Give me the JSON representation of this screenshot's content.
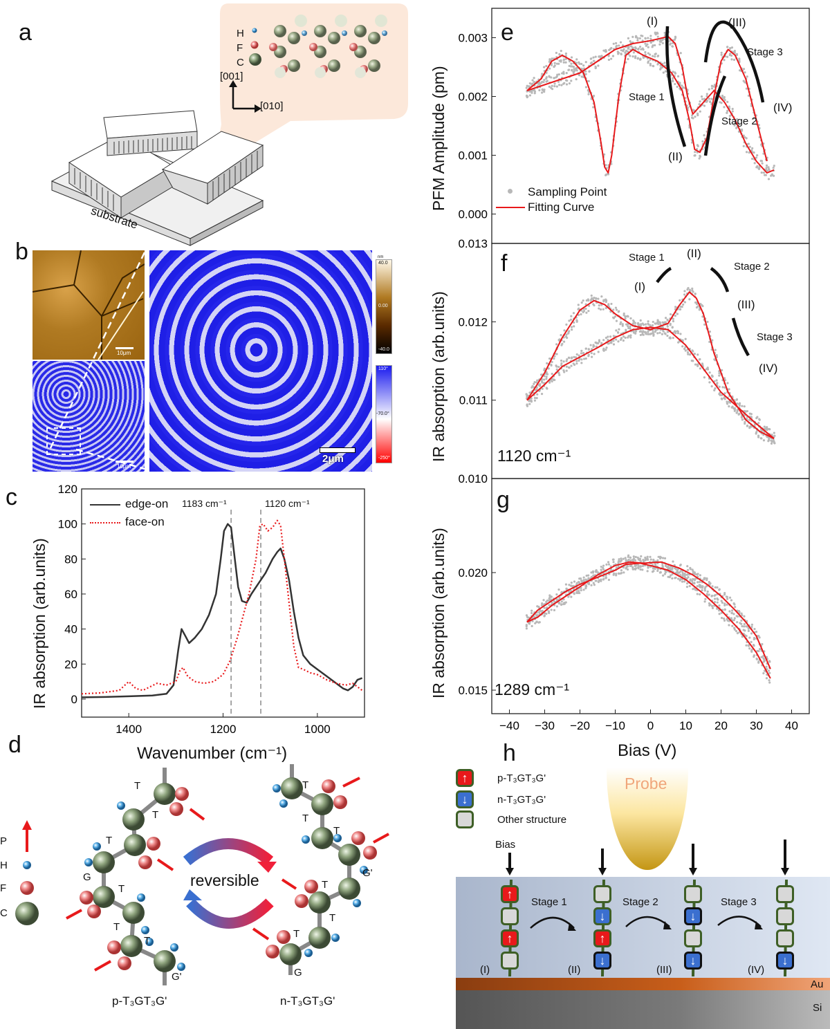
{
  "panel_letters": {
    "a": "a",
    "b": "b",
    "c": "c",
    "d": "d",
    "e": "e",
    "f": "f",
    "g": "g",
    "h": "h"
  },
  "panel_a": {
    "atoms": [
      "H",
      "F",
      "C"
    ],
    "axis_up": "[001]",
    "axis_right": "[010]",
    "substrate": "substrate"
  },
  "panel_b": {
    "scale_small_1": "10μm",
    "scale_small_2": "10μm",
    "scale_big": "2μm",
    "height_bar": {
      "unit": "nm",
      "max": "40.0",
      "mid": "0.00",
      "min": "-40.0"
    },
    "phase_bar": {
      "max": "110°",
      "mid": "-70.0°",
      "min": "-250°"
    }
  },
  "panel_d": {
    "legend": [
      "P",
      "H",
      "F",
      "C"
    ],
    "reversible": "reversible",
    "left_caption": "p-T₃GT₃G'",
    "right_caption": "n-T₃GT₃G'",
    "left_labels": [
      "T",
      "T",
      "T",
      "G",
      "T",
      "T",
      "T",
      "G'"
    ],
    "right_labels": [
      "T",
      "T",
      "T",
      "G'",
      "T",
      "T",
      "T",
      "G"
    ]
  },
  "panel_h": {
    "legend": [
      "p-T₃GT₃G'",
      "n-T₃GT₃G'",
      "Other structure"
    ],
    "probe": "Probe",
    "bias": "Bias",
    "stages": [
      "Stage 1",
      "Stage 2",
      "Stage 3"
    ],
    "states": [
      "(I)",
      "(II)",
      "(III)",
      "(IV)"
    ],
    "layers": [
      "Au",
      "Si"
    ]
  },
  "colors": {
    "red": "#e8191b",
    "gray_points": "#b8b8b8",
    "edge_on": "#333333",
    "blue_map": "#1a1aee"
  },
  "chart_data": [
    {
      "id": "c",
      "type": "line",
      "xlabel": "Wavenumber (cm⁻¹)",
      "ylabel": "IR absorption (arb.units)",
      "xlim": [
        1500,
        900
      ],
      "ylim": [
        -10.3,
        120
      ],
      "xticks": [
        1400,
        1200,
        1000
      ],
      "yticks": [
        0,
        20,
        40,
        60,
        80,
        100,
        120
      ],
      "vlines": [
        {
          "x": 1183,
          "label": "1183 cm⁻¹"
        },
        {
          "x": 1120,
          "label": "1120 cm⁻¹"
        }
      ],
      "legend": "top-left",
      "series": [
        {
          "name": "edge-on",
          "style": "solid",
          "x": [
            1500,
            1450,
            1400,
            1350,
            1320,
            1305,
            1295,
            1288,
            1280,
            1272,
            1260,
            1245,
            1230,
            1215,
            1205,
            1198,
            1190,
            1183,
            1175,
            1168,
            1160,
            1150,
            1140,
            1125,
            1110,
            1095,
            1085,
            1078,
            1070,
            1060,
            1050,
            1040,
            1030,
            1015,
            1000,
            980,
            960,
            945,
            935,
            925,
            915,
            905
          ],
          "y": [
            1,
            1.2,
            1.6,
            2,
            3,
            8,
            28,
            40,
            36,
            32,
            35,
            40,
            48,
            60,
            80,
            96,
            100,
            98,
            80,
            64,
            56,
            55,
            60,
            66,
            72,
            80,
            84,
            86,
            80,
            68,
            50,
            35,
            25,
            20,
            17,
            13,
            9,
            6,
            5,
            7,
            11,
            12
          ]
        },
        {
          "name": "face-on",
          "style": "dotted",
          "x": [
            1500,
            1460,
            1420,
            1400,
            1385,
            1370,
            1340,
            1320,
            1300,
            1292,
            1285,
            1275,
            1260,
            1240,
            1220,
            1200,
            1185,
            1170,
            1160,
            1145,
            1130,
            1122,
            1115,
            1105,
            1095,
            1085,
            1078,
            1070,
            1060,
            1050,
            1040,
            1030,
            1015,
            1000,
            980,
            960,
            940,
            925,
            910,
            905
          ],
          "y": [
            3,
            3.5,
            5,
            10,
            6,
            5,
            9,
            8,
            10,
            16,
            18,
            13,
            10,
            9,
            10,
            14,
            22,
            35,
            45,
            60,
            80,
            99,
            100,
            96,
            98,
            102,
            99,
            80,
            55,
            30,
            18,
            17,
            15,
            14,
            11,
            9,
            8,
            9,
            6,
            5
          ]
        }
      ]
    },
    {
      "id": "e",
      "type": "scatter+line",
      "ylabel": "PFM Amplitude (pm)",
      "xlim": [
        -45,
        45
      ],
      "ylim": [
        -0.0005,
        0.0035
      ],
      "yticks": [
        "0.000",
        "0.001",
        "0.002",
        "0.003"
      ],
      "legend": {
        "position": "bottom-left",
        "entries": [
          "Sampling Point",
          "Fitting Curve"
        ]
      },
      "annotations": [
        "(I)",
        "(II)",
        "(III)",
        "(IV)",
        "Stage 1",
        "Stage 2",
        "Stage 3"
      ],
      "series": [
        {
          "name": "Fitting Curve (sweep A)",
          "x": [
            -35,
            -31,
            -28,
            -25,
            -22,
            -19,
            -16,
            -14,
            -13,
            -12,
            -11,
            -9,
            -7,
            -5,
            -2,
            2,
            6,
            9,
            11,
            12.5,
            14,
            16,
            18,
            20,
            22,
            24,
            27,
            30,
            33
          ],
          "y": [
            0.0021,
            0.0023,
            0.0026,
            0.0027,
            0.0026,
            0.0024,
            0.0019,
            0.0012,
            0.0008,
            0.0007,
            0.001,
            0.002,
            0.0027,
            0.0028,
            0.0027,
            0.0026,
            0.0024,
            0.0021,
            0.0016,
            0.0011,
            0.00105,
            0.0013,
            0.002,
            0.0026,
            0.0028,
            0.0027,
            0.0023,
            0.0016,
            0.0009
          ]
        },
        {
          "name": "Fitting Curve (sweep B)",
          "x": [
            -35,
            -30,
            -25,
            -20,
            -15,
            -10,
            -5,
            0,
            5,
            7,
            9,
            10.5,
            12,
            15,
            18,
            21,
            24,
            27,
            30,
            33,
            35
          ],
          "y": [
            0.0021,
            0.0022,
            0.0023,
            0.0024,
            0.0026,
            0.0028,
            0.0029,
            0.00295,
            0.00302,
            0.0029,
            0.0025,
            0.002,
            0.0017,
            0.0019,
            0.0021,
            0.0019,
            0.0016,
            0.0012,
            0.0009,
            0.0007,
            0.00075
          ]
        }
      ]
    },
    {
      "id": "f",
      "type": "scatter+line",
      "ylabel": "IR absorption (arb.units)",
      "xlim": [
        -45,
        45
      ],
      "ylim": [
        0.01,
        0.013
      ],
      "yticks": [
        "0.010",
        "0.011",
        "0.012",
        "0.013"
      ],
      "inset_label": "1120 cm⁻¹",
      "annotations": [
        "(I)",
        "(II)",
        "(III)",
        "(IV)",
        "Stage 1",
        "Stage 2",
        "Stage 3"
      ],
      "series": [
        {
          "name": "sweep A",
          "x": [
            -35,
            -30,
            -25,
            -20,
            -16,
            -13,
            -10,
            -5,
            0,
            5,
            8,
            11,
            13,
            15,
            18,
            22,
            27,
            31,
            35
          ],
          "y": [
            0.011,
            0.01135,
            0.0118,
            0.01215,
            0.01227,
            0.01222,
            0.0121,
            0.01195,
            0.0119,
            0.01198,
            0.0122,
            0.01238,
            0.0123,
            0.0121,
            0.0116,
            0.0111,
            0.01075,
            0.0106,
            0.01051
          ]
        },
        {
          "name": "sweep B",
          "x": [
            -35,
            -30,
            -25,
            -20,
            -15,
            -10,
            -5,
            0,
            5,
            10,
            15,
            20,
            25,
            30,
            35
          ],
          "y": [
            0.011,
            0.0112,
            0.01143,
            0.01155,
            0.01167,
            0.0118,
            0.0119,
            0.01193,
            0.0119,
            0.0117,
            0.0114,
            0.0111,
            0.0109,
            0.0107,
            0.01051
          ]
        }
      ]
    },
    {
      "id": "g",
      "type": "scatter+line",
      "xlabel": "Bias (V)",
      "ylabel": "IR absorption (arb.units)",
      "xlim": [
        -45,
        45
      ],
      "ylim": [
        0.014,
        0.024
      ],
      "xticks": [
        -40,
        -30,
        -20,
        -10,
        0,
        10,
        20,
        30,
        40
      ],
      "yticks": [
        "0.015",
        "0.020"
      ],
      "inset_label": "1289 cm⁻¹",
      "series": [
        {
          "name": "sweep A",
          "x": [
            -35,
            -32,
            -28,
            -24,
            -20,
            -15,
            -10,
            -6,
            -2,
            3,
            8,
            12,
            16,
            20,
            24,
            27,
            30,
            32,
            34
          ],
          "y": [
            0.0179,
            0.0181,
            0.0186,
            0.019,
            0.0194,
            0.0199,
            0.0203,
            0.02045,
            0.0204,
            0.02045,
            0.0202,
            0.0199,
            0.0195,
            0.019,
            0.0184,
            0.0179,
            0.0173,
            0.0166,
            0.0159
          ]
        },
        {
          "name": "sweep B",
          "x": [
            -35,
            -32,
            -28,
            -24,
            -20,
            -15,
            -10,
            -7,
            -3,
            0,
            5,
            10,
            15,
            20,
            25,
            30,
            34
          ],
          "y": [
            0.0179,
            0.0184,
            0.0188,
            0.0192,
            0.0195,
            0.0198,
            0.0201,
            0.02035,
            0.0204,
            0.0203,
            0.0201,
            0.0197,
            0.0191,
            0.0184,
            0.0176,
            0.0166,
            0.0155
          ]
        }
      ]
    }
  ]
}
